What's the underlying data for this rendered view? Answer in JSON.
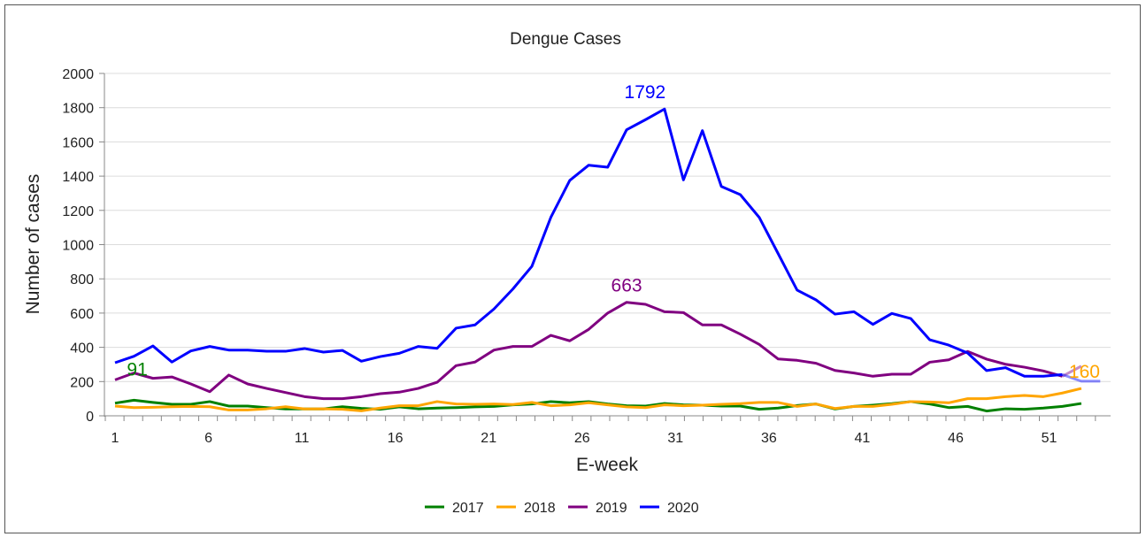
{
  "chart_data": {
    "type": "line",
    "title": "Dengue Cases",
    "xlabel": "E-week",
    "ylabel": "Number of cases",
    "ylim": [
      0,
      2000
    ],
    "yticks": [
      0,
      200,
      400,
      600,
      800,
      1000,
      1200,
      1400,
      1600,
      1800,
      2000
    ],
    "xticks": [
      1,
      6,
      11,
      16,
      21,
      26,
      31,
      36,
      41,
      46,
      51
    ],
    "grid": "horizontal",
    "legend_position": "bottom",
    "series": [
      {
        "name": "2017",
        "color": "#008000",
        "values": [
          74,
          91,
          78,
          67,
          67,
          83,
          57,
          57,
          48,
          40,
          40,
          40,
          53,
          43,
          38,
          52,
          41,
          45,
          48,
          52,
          55,
          64,
          69,
          83,
          76,
          83,
          69,
          59,
          57,
          72,
          64,
          62,
          57,
          57,
          38,
          45,
          60,
          69,
          40,
          55,
          62,
          71,
          83,
          69,
          48,
          55,
          28,
          41,
          38,
          45,
          55,
          72
        ],
        "annotation": {
          "week": 2,
          "text": "91"
        }
      },
      {
        "name": "2018",
        "color": "#FFA500",
        "values": [
          57,
          48,
          50,
          53,
          55,
          53,
          34,
          34,
          41,
          53,
          40,
          41,
          38,
          29,
          45,
          59,
          59,
          83,
          69,
          67,
          69,
          66,
          78,
          59,
          64,
          76,
          64,
          52,
          48,
          64,
          59,
          62,
          67,
          71,
          78,
          78,
          55,
          69,
          43,
          55,
          55,
          67,
          83,
          81,
          76,
          100,
          100,
          112,
          119,
          112,
          133,
          160
        ],
        "annotation": {
          "week": 52,
          "text": "160"
        }
      },
      {
        "name": "2019",
        "color": "#800080",
        "values": [
          210,
          250,
          219,
          227,
          186,
          141,
          238,
          186,
          160,
          136,
          112,
          100,
          100,
          112,
          129,
          138,
          160,
          196,
          293,
          314,
          384,
          405,
          405,
          470,
          438,
          505,
          600,
          663,
          651,
          608,
          603,
          531,
          531,
          477,
          417,
          332,
          324,
          307,
          265,
          250,
          231,
          243,
          243,
          313,
          327,
          376,
          331,
          301,
          284,
          262,
          231,
          290
        ],
        "annotation": {
          "week": 28,
          "text": "663"
        }
      },
      {
        "name": "2020",
        "color": "#0000FF",
        "values": [
          310,
          348,
          408,
          314,
          379,
          405,
          384,
          384,
          377,
          377,
          393,
          372,
          382,
          319,
          346,
          365,
          405,
          394,
          512,
          531,
          624,
          741,
          873,
          1159,
          1375,
          1464,
          1452,
          1671,
          1730,
          1792,
          1378,
          1666,
          1340,
          1292,
          1159,
          947,
          734,
          677,
          594,
          608,
          534,
          598,
          568,
          444,
          413,
          367,
          264,
          281,
          231,
          231,
          241,
          202,
          202
        ],
        "annotation": {
          "week": 30,
          "text": "1792"
        }
      }
    ]
  }
}
